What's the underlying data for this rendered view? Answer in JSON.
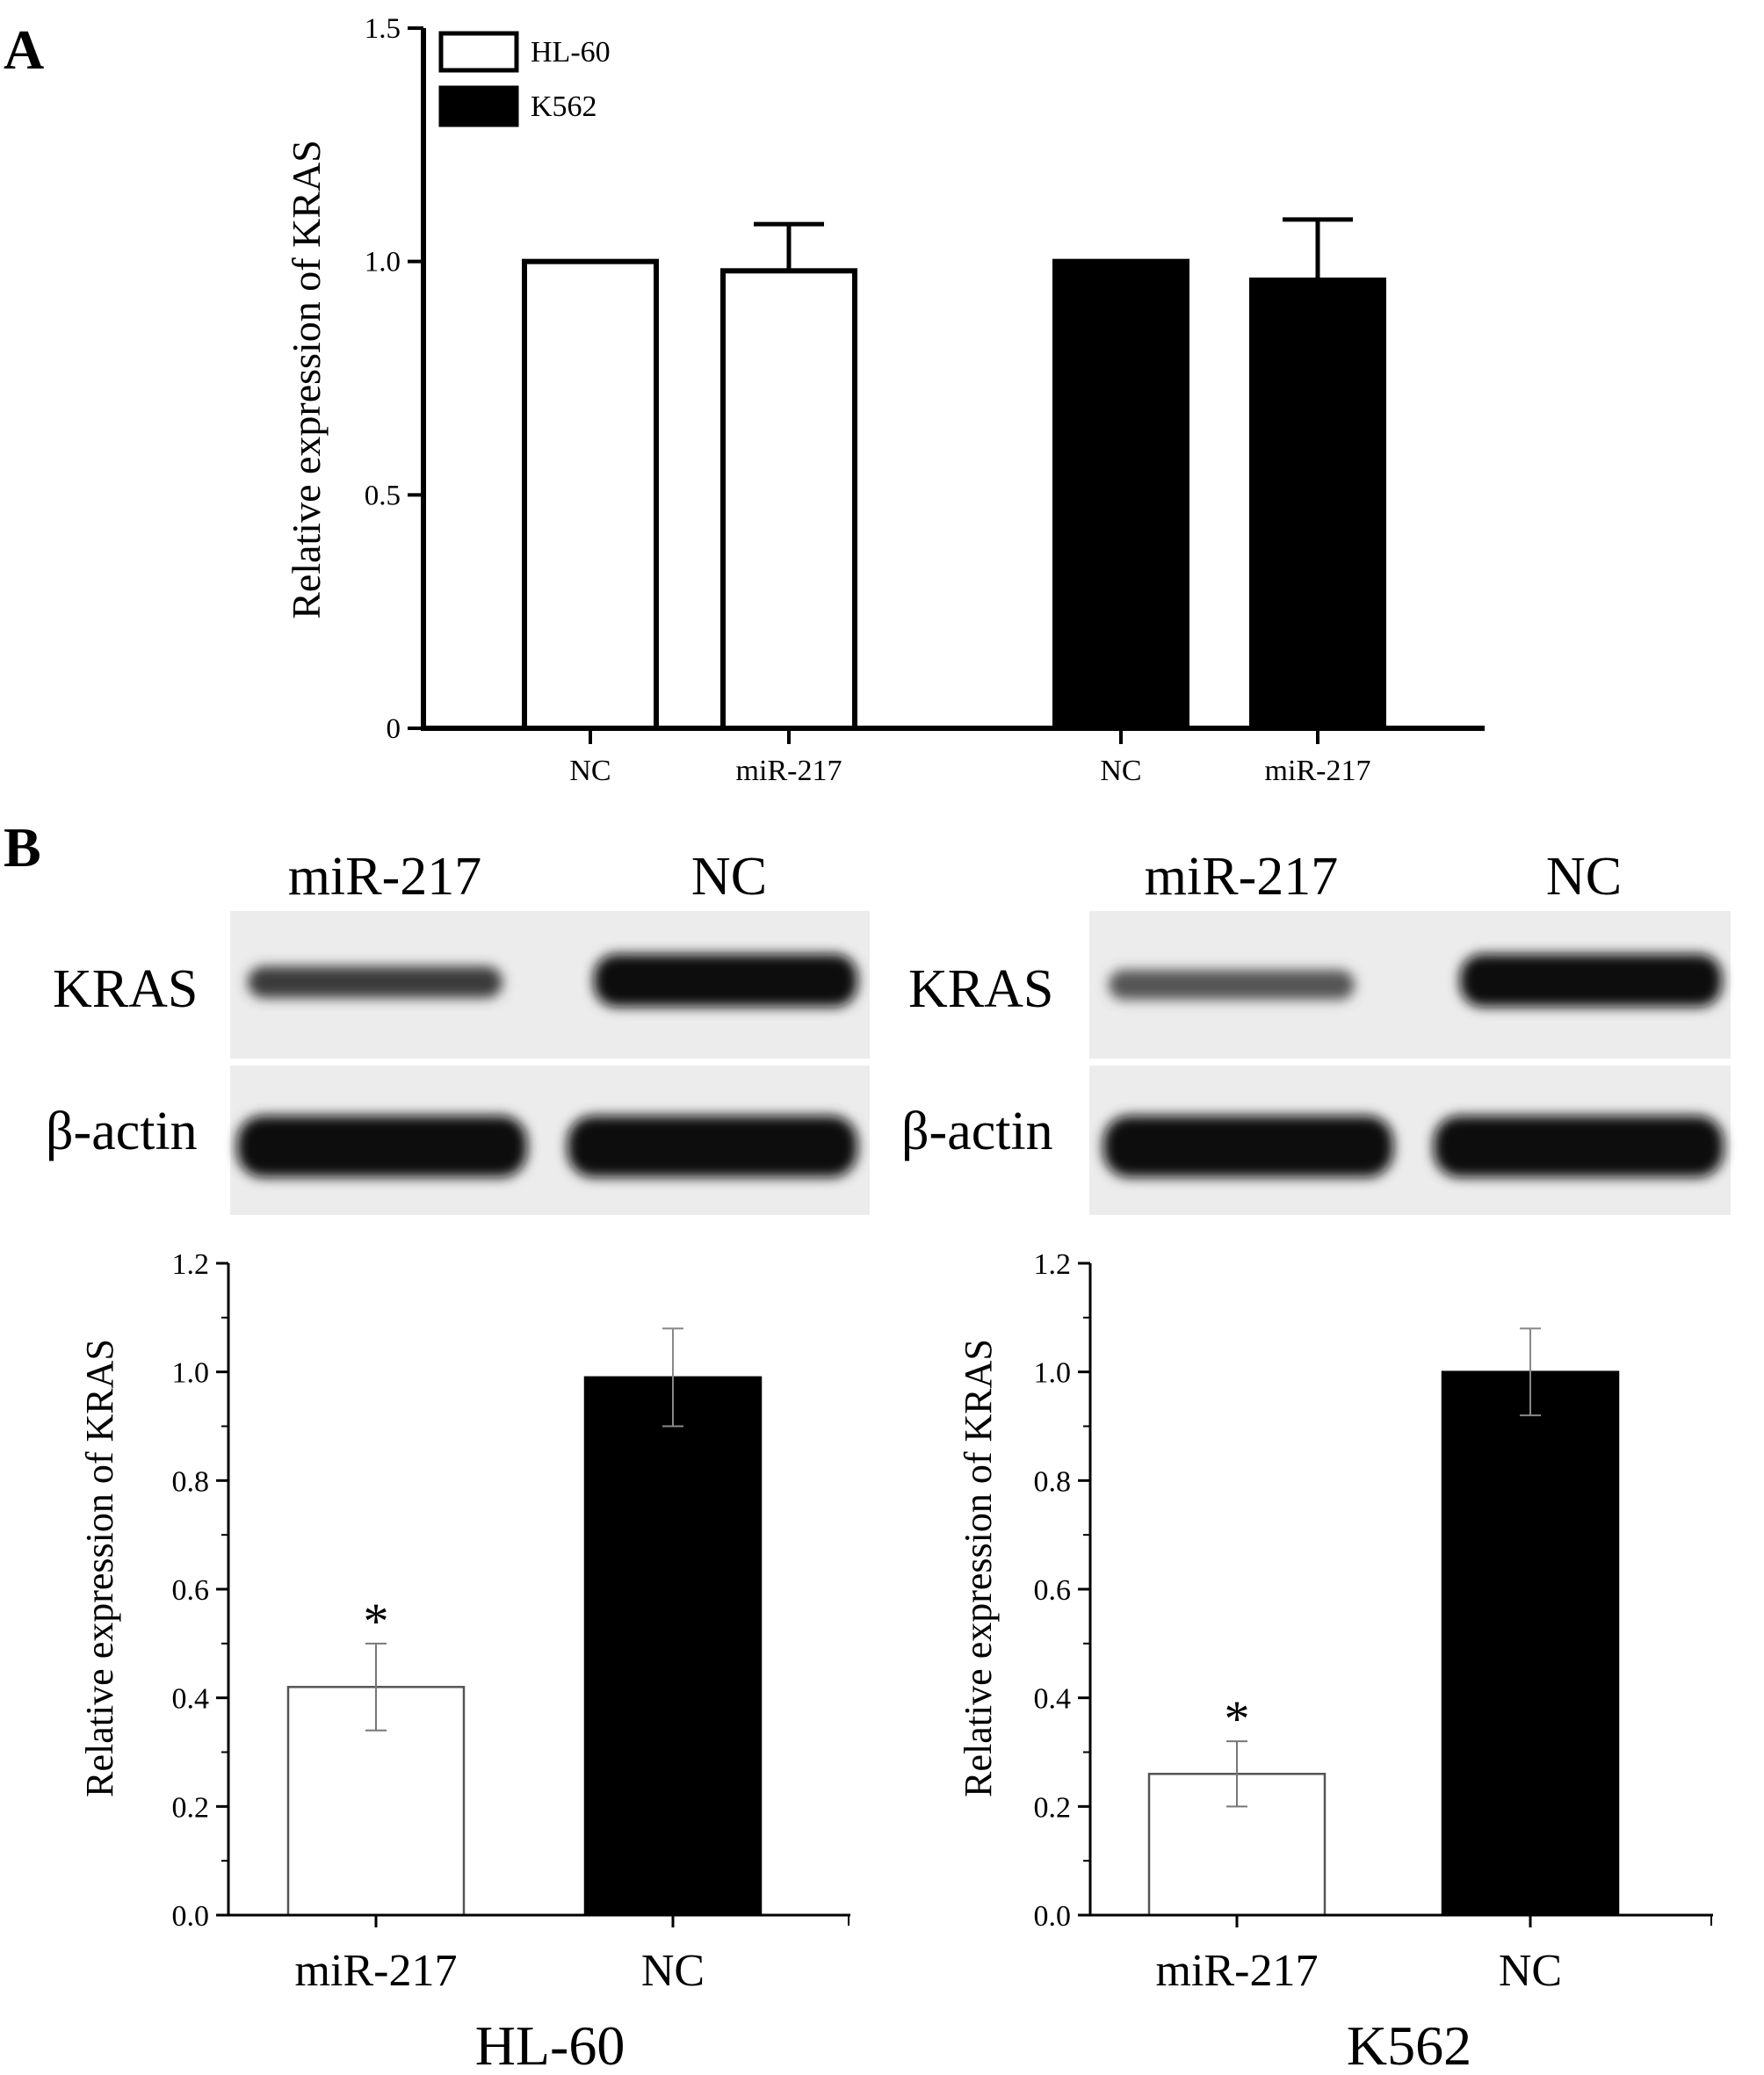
{
  "panel_a": {
    "letter": "A"
  },
  "panel_b": {
    "letter": "B"
  },
  "blots": [
    {
      "lanes": [
        "miR-217",
        "NC"
      ],
      "rows": [
        "KRAS",
        "β-actin"
      ]
    },
    {
      "lanes": [
        "miR-217",
        "NC"
      ],
      "rows": [
        "KRAS",
        "β-actin"
      ]
    }
  ],
  "chart_data": [
    {
      "type": "bar",
      "ylabel": "Relative expression of KRAS",
      "xlabel": "",
      "ylim": [
        0,
        1.5
      ],
      "yticks": [
        "0",
        "0.5",
        "1.0",
        "1.5"
      ],
      "categories": [
        "NC",
        "miR-217",
        "NC",
        "miR-217"
      ],
      "values": [
        1.0,
        0.98,
        1.0,
        0.96
      ],
      "errors": [
        0.0,
        0.1,
        0.0,
        0.13
      ],
      "fills": [
        "#ffffff",
        "#ffffff",
        "#000000",
        "#000000"
      ],
      "legend": {
        "position": "top-left",
        "items": [
          {
            "label": "HL-60",
            "color": "#ffffff"
          },
          {
            "label": "K562",
            "color": "#000000"
          }
        ]
      },
      "grid": false
    },
    {
      "type": "bar",
      "ylabel": "Relative expression of KRAS",
      "xlabel": "HL-60",
      "ylim": [
        0,
        1.2
      ],
      "yticks": [
        "0.0",
        "0.2",
        "0.4",
        "0.6",
        "0.8",
        "1.0",
        "1.2"
      ],
      "categories": [
        "miR-217",
        "NC"
      ],
      "values": [
        0.42,
        0.99
      ],
      "errors": [
        0.08,
        0.09
      ],
      "fills": [
        "#ffffff",
        "#000000"
      ],
      "annotations": [
        "*",
        ""
      ],
      "grid": false
    },
    {
      "type": "bar",
      "ylabel": "Relative expression of KRAS",
      "xlabel": "K562",
      "ylim": [
        0,
        1.2
      ],
      "yticks": [
        "0.0",
        "0.2",
        "0.4",
        "0.6",
        "0.8",
        "1.0",
        "1.2"
      ],
      "categories": [
        "miR-217",
        "NC"
      ],
      "values": [
        0.26,
        1.0
      ],
      "errors": [
        0.06,
        0.08
      ],
      "fills": [
        "#ffffff",
        "#000000"
      ],
      "annotations": [
        "*",
        ""
      ],
      "grid": false
    }
  ]
}
